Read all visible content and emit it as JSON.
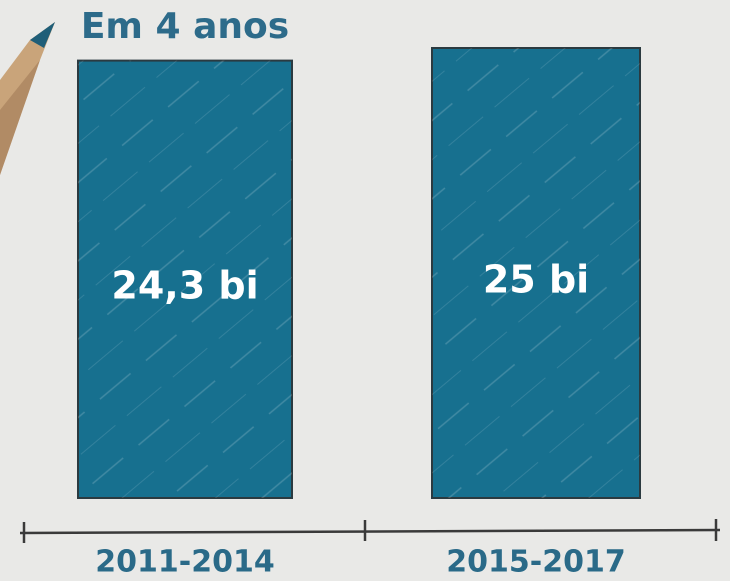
{
  "chart_data": {
    "type": "bar",
    "annotation": "Em 4 anos",
    "categories": [
      "2011-2014",
      "2015-2017"
    ],
    "values": [
      24.3,
      25
    ],
    "value_labels": [
      "24,3 bi",
      "25 bi"
    ],
    "color": "#17708f"
  }
}
